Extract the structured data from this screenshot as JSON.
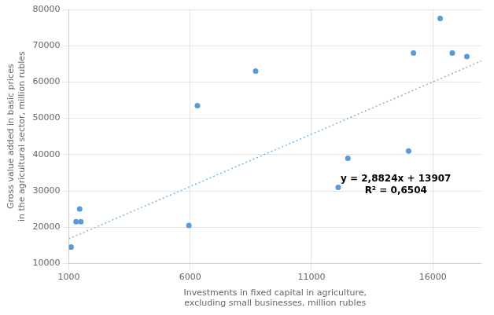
{
  "chart_data": {
    "type": "scatter",
    "xlabel": "Investments in fixed capital in agriculture,\nexcluding small businesses, million rubles",
    "ylabel": "Gross value added in basic prices\nin the agricultural sector, million rubles",
    "series": [
      {
        "type": "scatter",
        "color": "#5b9bd5",
        "marker": "circle",
        "x": [
          1100,
          1300,
          1450,
          1500,
          5950,
          6300,
          8700,
          12100,
          12500,
          15000,
          15200,
          16300,
          16800,
          17400
        ],
        "values": [
          14500,
          21500,
          25000,
          21500,
          20500,
          53500,
          63000,
          31000,
          39000,
          41000,
          68000,
          77500,
          68000,
          67000
        ]
      },
      {
        "type": "line",
        "color": "#7ab6e0",
        "line_style": "dotted",
        "x": [
          1000,
          18000
        ],
        "values": [
          16789.4,
          65790.2
        ]
      }
    ],
    "annotations": [
      {
        "text": "y = 2,8824x + 13907\nR² = 0,6504",
        "x": 12200,
        "y": 34500
      }
    ],
    "xlim": [
      1000,
      18000
    ],
    "ylim": [
      10000,
      80000
    ],
    "xticks": [
      1000,
      6000,
      11000,
      16000
    ],
    "yticks": [
      10000,
      20000,
      30000,
      40000,
      50000,
      60000,
      70000,
      80000
    ],
    "grid": true
  }
}
